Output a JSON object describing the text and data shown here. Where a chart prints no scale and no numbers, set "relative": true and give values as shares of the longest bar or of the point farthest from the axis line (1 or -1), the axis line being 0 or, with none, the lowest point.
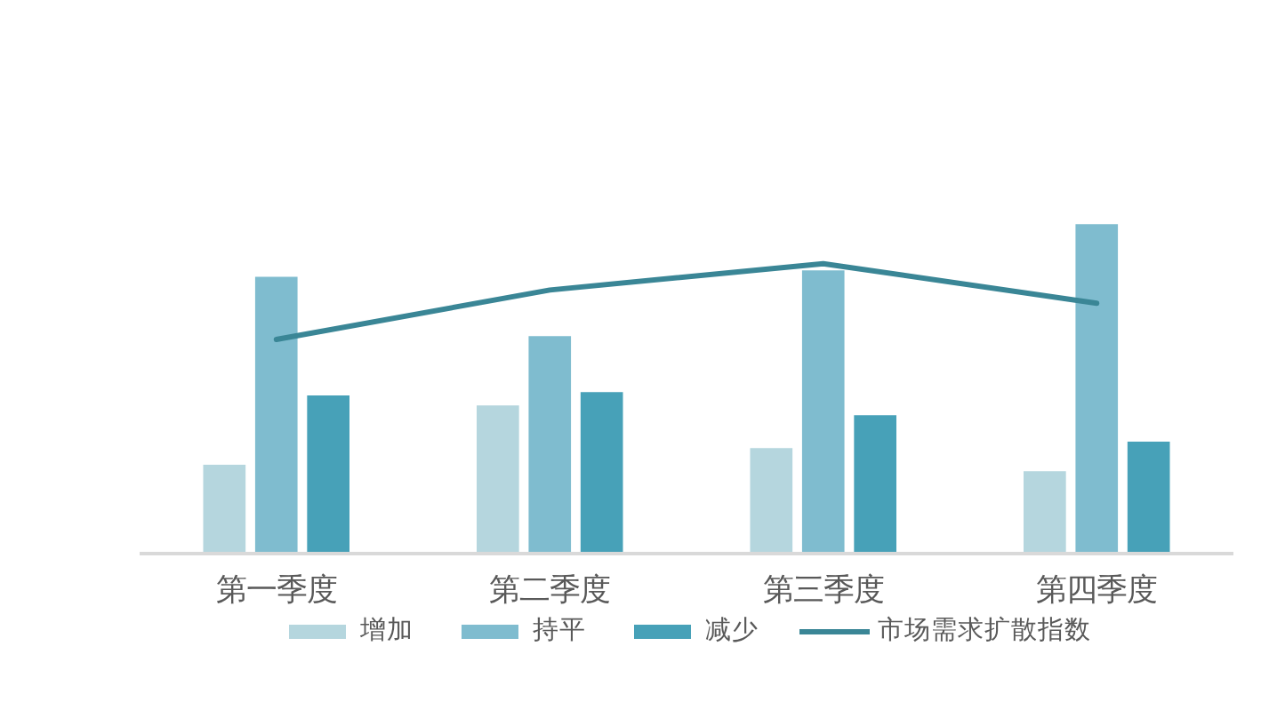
{
  "chart_data": {
    "type": "bar",
    "relative": true,
    "categories": [
      "第一季度",
      "第二季度",
      "第三季度",
      "第四季度"
    ],
    "series": [
      {
        "name": "增加",
        "color": "#b5d6de",
        "values": [
          0.27,
          0.45,
          0.32,
          0.25
        ]
      },
      {
        "name": "持平",
        "color": "#7fbccf",
        "values": [
          0.84,
          0.66,
          0.86,
          1.0
        ]
      },
      {
        "name": "减少",
        "color": "#47a1b8",
        "values": [
          0.48,
          0.49,
          0.42,
          0.34
        ]
      },
      {
        "name": "市场需求扩散指数",
        "color": "#3a8696",
        "type": "line",
        "values": [
          0.65,
          0.8,
          0.88,
          0.76
        ]
      }
    ],
    "legend": "bottom"
  }
}
